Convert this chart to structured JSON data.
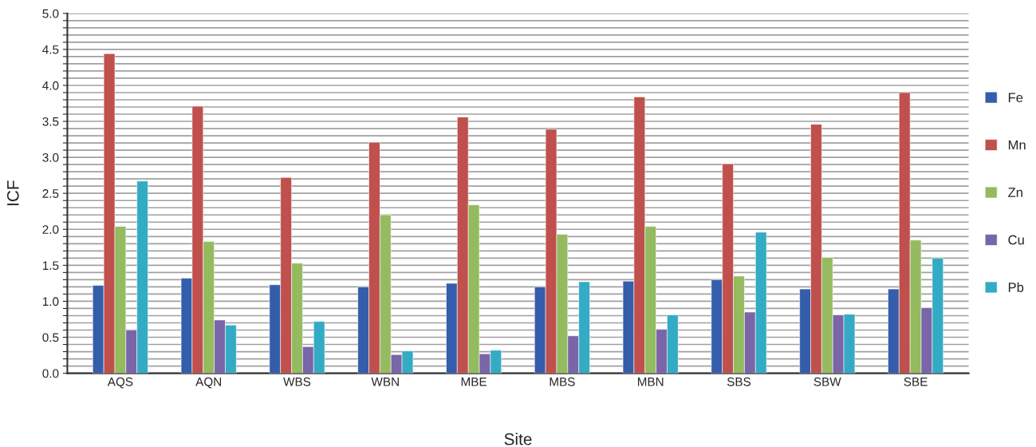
{
  "chart_data": {
    "type": "bar",
    "xlabel": "Site",
    "ylabel": "ICF",
    "categories": [
      "AQS",
      "AQN",
      "WBS",
      "WBN",
      "MBE",
      "MBS",
      "MBN",
      "SBS",
      "SBW",
      "SBE"
    ],
    "series": [
      {
        "name": "Fe",
        "color": "#345dab",
        "values": [
          1.22,
          1.32,
          1.23,
          1.2,
          1.25,
          1.2,
          1.28,
          1.3,
          1.17,
          1.17
        ]
      },
      {
        "name": "Mn",
        "color": "#bf504d",
        "values": [
          4.44,
          3.71,
          2.72,
          3.21,
          3.56,
          3.39,
          3.84,
          2.91,
          3.46,
          3.9
        ]
      },
      {
        "name": "Zn",
        "color": "#94bb5f",
        "values": [
          2.04,
          1.83,
          1.53,
          2.2,
          2.34,
          1.93,
          2.04,
          1.35,
          1.61,
          1.85
        ]
      },
      {
        "name": "Cu",
        "color": "#7965a7",
        "values": [
          0.6,
          0.74,
          0.37,
          0.26,
          0.27,
          0.52,
          0.61,
          0.85,
          0.81,
          0.91
        ]
      },
      {
        "name": "Pb",
        "color": "#33abc4",
        "values": [
          2.67,
          0.67,
          0.72,
          0.31,
          0.32,
          1.27,
          0.81,
          1.96,
          0.82,
          1.6
        ]
      }
    ],
    "ylim": [
      0,
      5
    ],
    "yticks": [
      {
        "value": 0,
        "label": "0.0"
      },
      {
        "value": 0.1,
        "label": null
      },
      {
        "value": 0.2,
        "label": null
      },
      {
        "value": 0.3,
        "label": null
      },
      {
        "value": 0.4,
        "label": null
      },
      0.5,
      {
        "value": 0.6,
        "label": null
      },
      {
        "value": 0.7,
        "label": null
      },
      {
        "value": 0.8,
        "label": null
      },
      {
        "value": 0.9,
        "label": null
      },
      {
        "value": 1,
        "label": "1.0"
      },
      {
        "value": 1.1,
        "label": null
      },
      {
        "value": 1.2,
        "label": null
      },
      {
        "value": 1.3,
        "label": null
      },
      {
        "value": 1.4,
        "label": null
      },
      1.5,
      {
        "value": 1.6,
        "label": null
      },
      {
        "value": 1.7,
        "label": null
      },
      {
        "value": 1.8,
        "label": null
      },
      {
        "value": 1.9,
        "label": null
      },
      {
        "value": 2,
        "label": "2.0"
      },
      {
        "value": 2.1,
        "label": null
      },
      {
        "value": 2.2,
        "label": null
      },
      {
        "value": 2.3,
        "label": null
      },
      {
        "value": 2.4,
        "label": null
      },
      2.5,
      {
        "value": 2.6,
        "label": null
      },
      {
        "value": 2.7,
        "label": null
      },
      {
        "value": 2.8,
        "label": null
      },
      {
        "value": 2.9,
        "label": null
      },
      {
        "value": 3,
        "label": "3.0"
      },
      {
        "value": 3.1,
        "label": null
      },
      {
        "value": 3.2,
        "label": null
      },
      {
        "value": 3.3,
        "label": null
      },
      {
        "value": 3.4,
        "label": null
      },
      3.5,
      {
        "value": 3.6,
        "label": null
      },
      {
        "value": 3.7,
        "label": null
      },
      {
        "value": 3.8,
        "label": null
      },
      {
        "value": 3.9,
        "label": null
      },
      {
        "value": 4,
        "label": "4.0"
      },
      {
        "value": 4.1,
        "label": null
      },
      {
        "value": 4.2,
        "label": null
      },
      {
        "value": 4.3,
        "label": null
      },
      {
        "value": 4.4,
        "label": null
      },
      4.5,
      {
        "value": 4.6,
        "label": null
      },
      {
        "value": 4.7,
        "label": null
      },
      {
        "value": 4.8,
        "label": null
      },
      {
        "value": 4.9,
        "label": null
      },
      {
        "value": 5,
        "label": "5.0"
      }
    ],
    "grid": "y",
    "legend": "right"
  }
}
